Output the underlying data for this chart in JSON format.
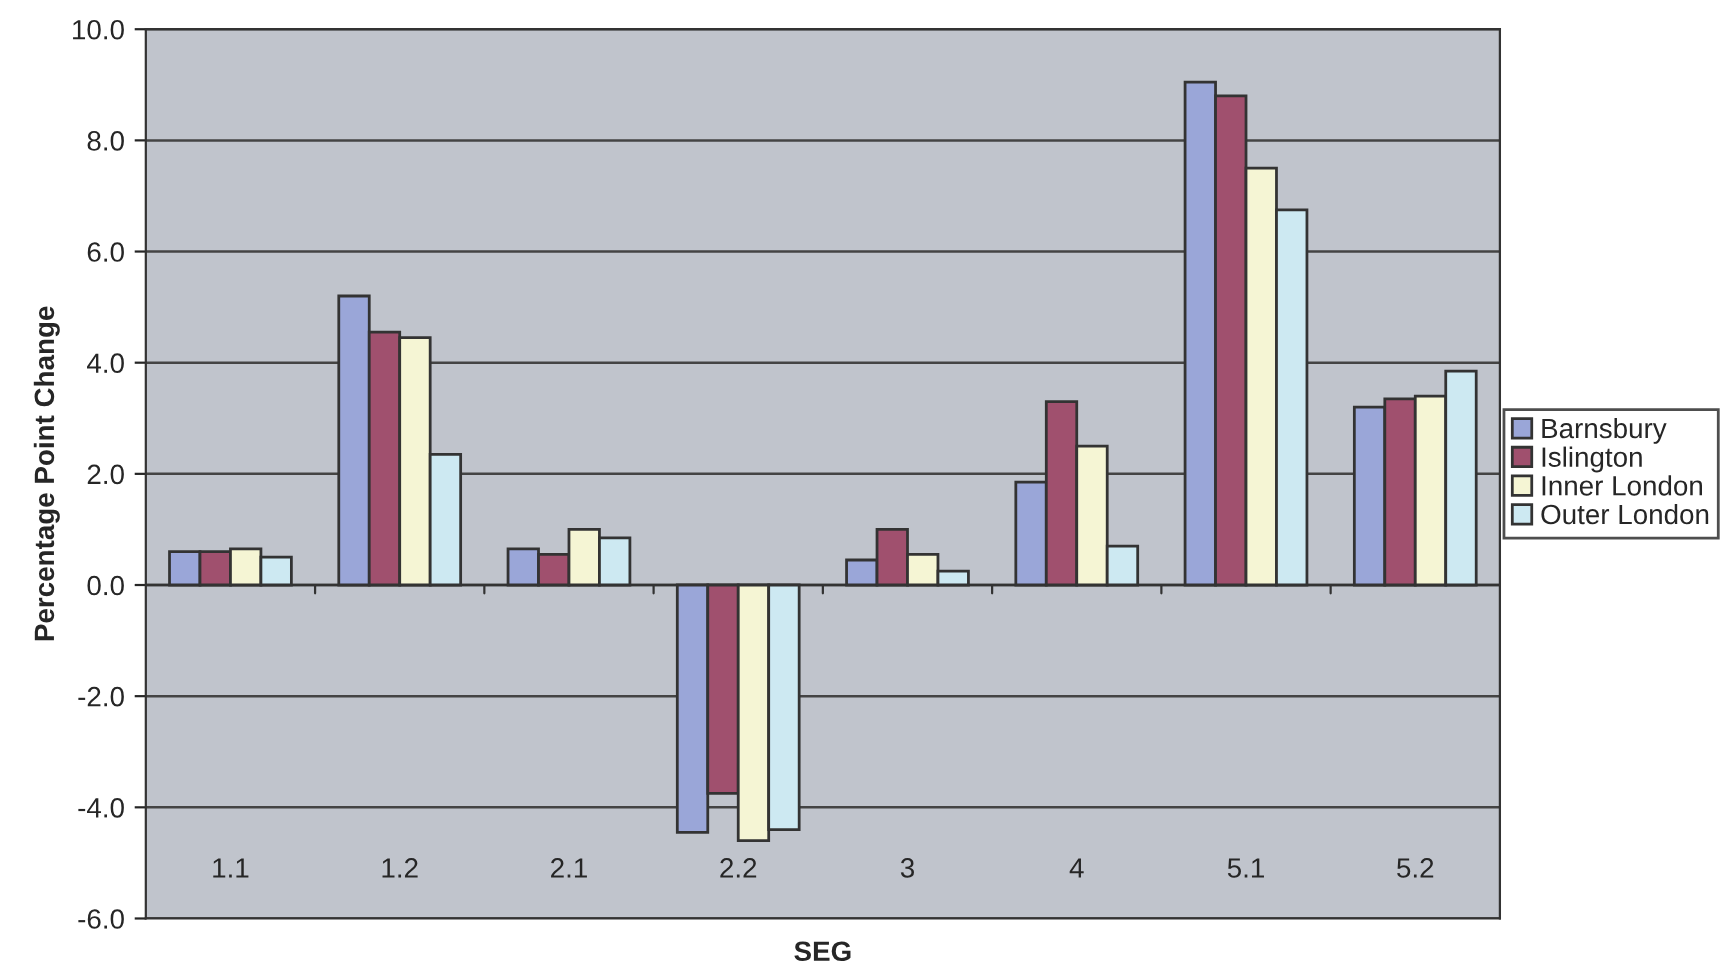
{
  "chart_data": {
    "type": "bar",
    "xlabel": "SEG",
    "ylabel": "Percentage Point Change",
    "categories": [
      "1.1",
      "1.2",
      "2.1",
      "2.2",
      "3",
      "4",
      "5.1",
      "5.2"
    ],
    "series": [
      {
        "name": "Barnsbury",
        "color": "#9aa6d8",
        "values": [
          0.6,
          5.2,
          0.65,
          -4.45,
          0.45,
          1.85,
          9.05,
          3.2
        ]
      },
      {
        "name": "Islington",
        "color": "#a0506e",
        "values": [
          0.6,
          4.55,
          0.55,
          -3.75,
          1.0,
          3.3,
          8.8,
          3.35
        ]
      },
      {
        "name": "Inner London",
        "color": "#f5f5d4",
        "values": [
          0.65,
          4.45,
          1.0,
          -4.6,
          0.55,
          2.5,
          7.5,
          3.4
        ]
      },
      {
        "name": "Outer London",
        "color": "#cde9f2",
        "values": [
          0.5,
          2.35,
          0.85,
          -4.4,
          0.25,
          0.7,
          6.75,
          3.85
        ]
      }
    ],
    "ylim": [
      -6.0,
      10.0
    ],
    "yticks": [
      {
        "value": -6,
        "label": "-6.0"
      },
      {
        "value": -4,
        "label": "-4.0"
      },
      {
        "value": -2,
        "label": "-2.0"
      },
      {
        "value": 0,
        "label": "0.0"
      },
      {
        "value": 2,
        "label": "2.0"
      },
      {
        "value": 4,
        "label": "4.0"
      },
      {
        "value": 6,
        "label": "6.0"
      },
      {
        "value": 8,
        "label": "8.0"
      },
      {
        "value": 10,
        "label": "10.0"
      }
    ],
    "grid": "y",
    "legend": "right"
  }
}
